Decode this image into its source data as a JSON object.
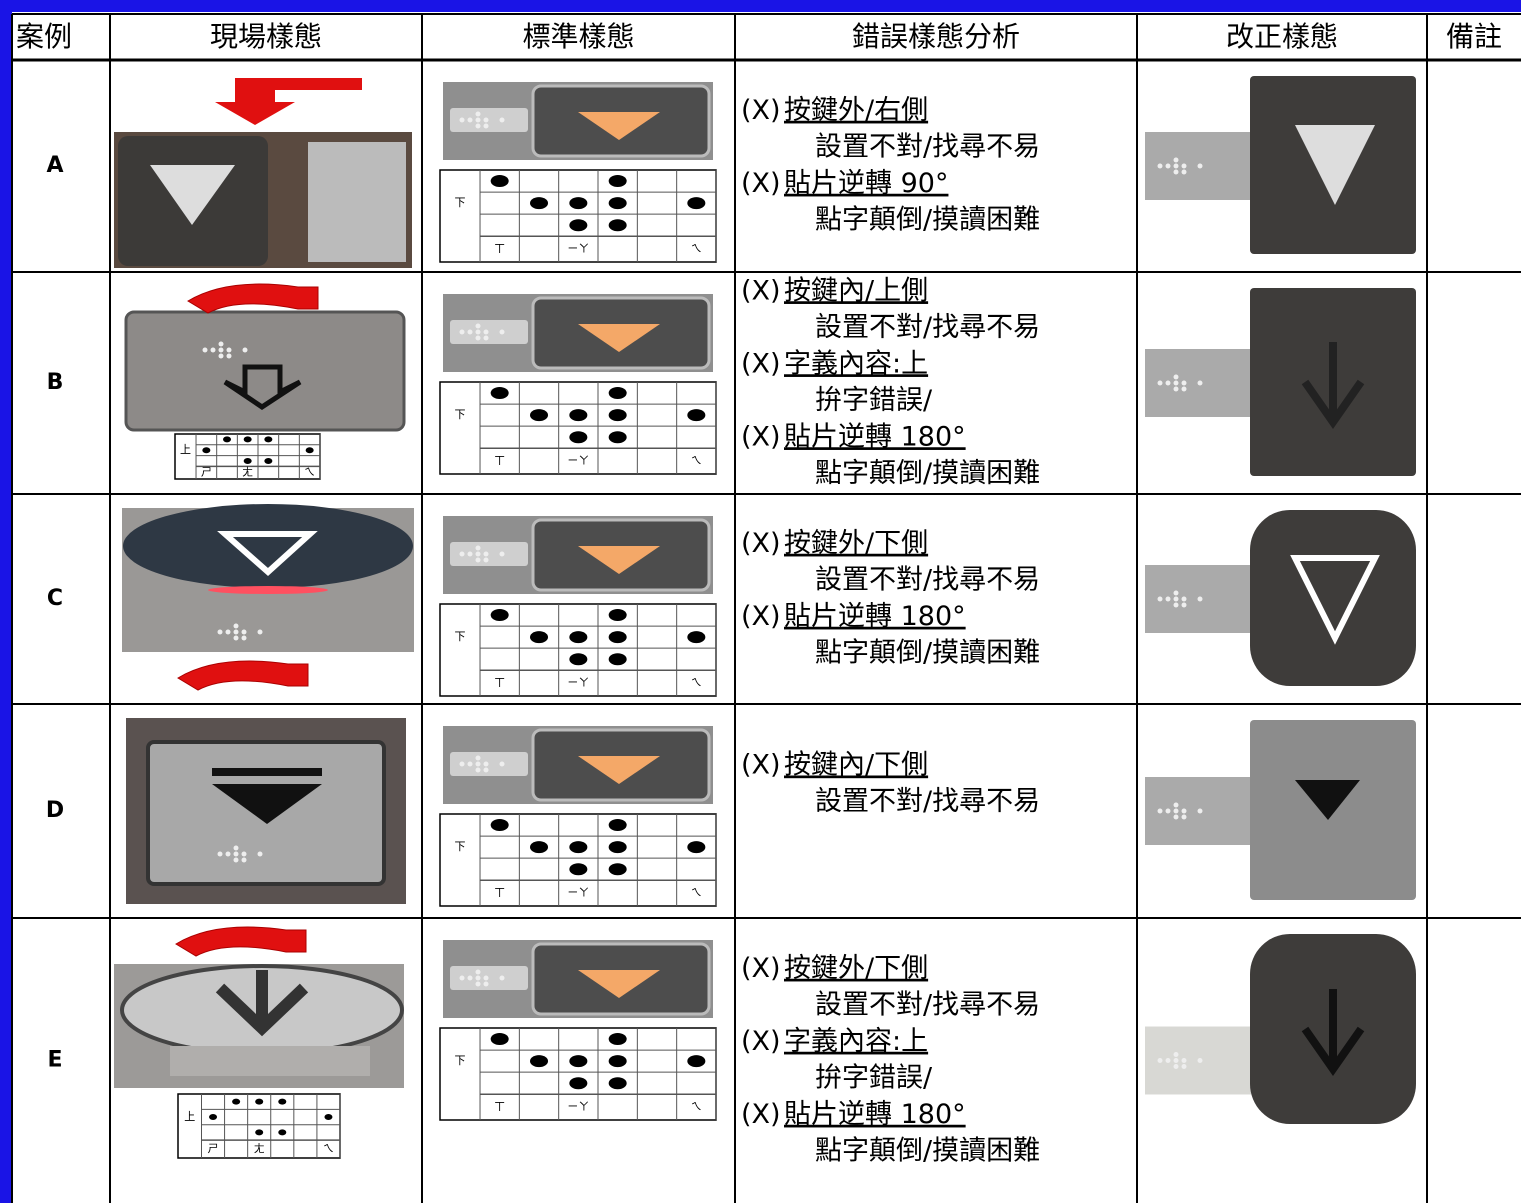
{
  "table": {
    "header": [
      "案例",
      "現場樣態",
      "標準樣態",
      "錯誤樣態分析",
      "改正樣態",
      "備註"
    ],
    "standard_braille": {
      "label": "下",
      "phonetics": [
        "ㄒ",
        "ㄧㄚ",
        "ㄟ"
      ]
    },
    "rows": [
      {
        "case": "A",
        "analysis": [
          {
            "mark": "(X)",
            "issue": "按鍵外/右側",
            "detail": "設置不對/找尋不易"
          },
          {
            "mark": "(X)",
            "issue": "貼片逆轉 90°",
            "detail": "點字顛倒/摸讀困難"
          }
        ]
      },
      {
        "case": "B",
        "field_braille": {
          "label": "上",
          "phonetics": [
            "ㄕ",
            "ㄤ",
            "ㄟ"
          ]
        },
        "analysis": [
          {
            "mark": "(X)",
            "issue": "按鍵內/上側",
            "detail": "設置不對/找尋不易"
          },
          {
            "mark": "(X)",
            "issue": "字義內容:上",
            "detail": "拚字錯誤/"
          },
          {
            "mark": "(X)",
            "issue": "貼片逆轉 180°",
            "detail": "點字顛倒/摸讀困難"
          }
        ]
      },
      {
        "case": "C",
        "analysis": [
          {
            "mark": "(X)",
            "issue": "按鍵外/下側",
            "detail": "設置不對/找尋不易"
          },
          {
            "mark": "(X)",
            "issue": "貼片逆轉 180°",
            "detail": "點字顛倒/摸讀困難"
          }
        ]
      },
      {
        "case": "D",
        "analysis": [
          {
            "mark": "(X)",
            "issue": "按鍵內/下側",
            "detail": "設置不對/找尋不易"
          }
        ]
      },
      {
        "case": "E",
        "field_braille": {
          "label": "上",
          "phonetics": [
            "ㄕ",
            "ㄤ",
            "ㄟ"
          ]
        },
        "analysis": [
          {
            "mark": "(X)",
            "issue": "按鍵外/下側",
            "detail": "設置不對/找尋不易"
          },
          {
            "mark": "(X)",
            "issue": "字義內容:上",
            "detail": "拚字錯誤/"
          },
          {
            "mark": "(X)",
            "issue": "貼片逆轉 180°",
            "detail": "點字顛倒/摸讀困難"
          }
        ]
      }
    ]
  }
}
